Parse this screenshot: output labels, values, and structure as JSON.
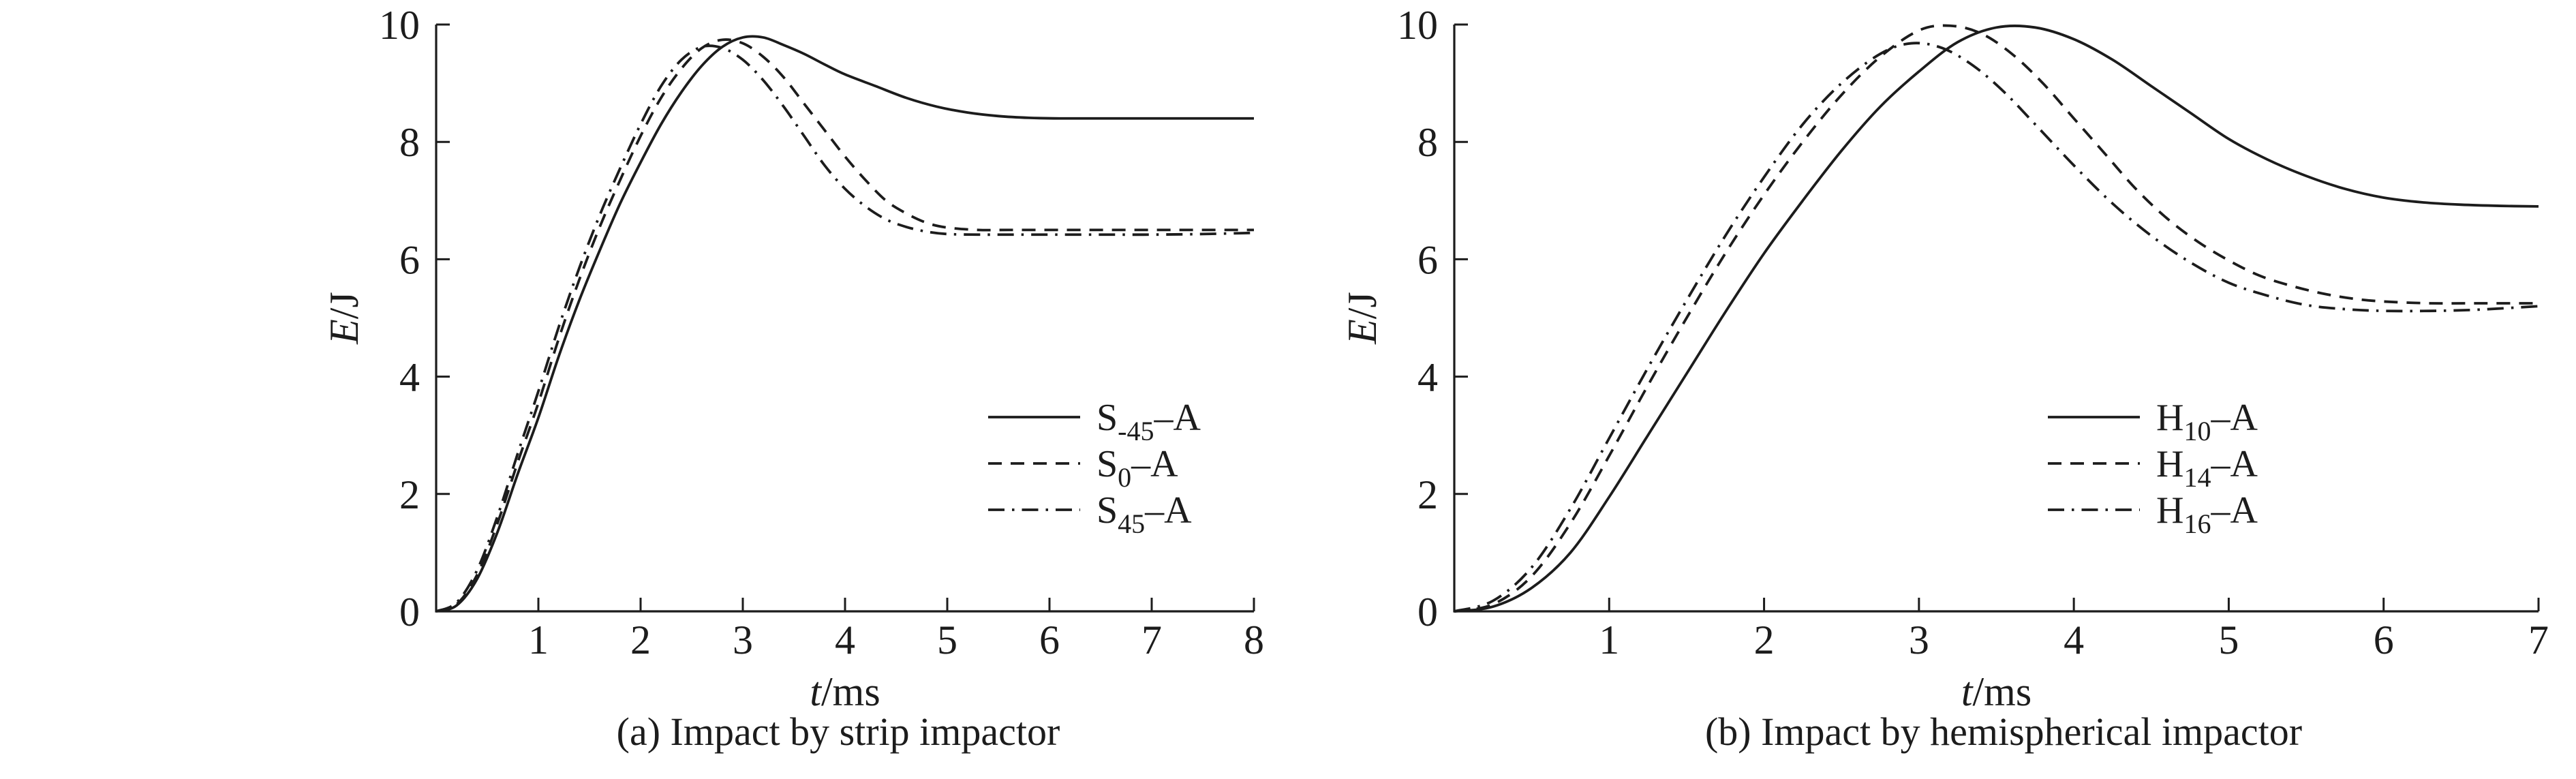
{
  "figure": {
    "background": "#ffffff",
    "ink_color": "#1c1c1c"
  },
  "chart_data": [
    {
      "type": "line",
      "caption": "(a) Impact by strip impactor",
      "xlabel": {
        "var": "t",
        "rest": "/ms"
      },
      "ylabel": {
        "var": "E",
        "rest": "/J"
      },
      "xlim": [
        0,
        8
      ],
      "ylim": [
        0,
        10
      ],
      "xticks": [
        1,
        2,
        3,
        4,
        5,
        6,
        7,
        8
      ],
      "yticks": [
        0,
        2,
        4,
        6,
        8,
        10
      ],
      "grid": false,
      "legend_position": "inside-right-lower",
      "series": [
        {
          "label_base": "S",
          "label_sub": "-45",
          "label_rest": "–A",
          "style": "solid",
          "points": [
            [
              0,
              0
            ],
            [
              0.2,
              0.1
            ],
            [
              0.4,
              0.55
            ],
            [
              0.6,
              1.35
            ],
            [
              0.8,
              2.35
            ],
            [
              1.0,
              3.3
            ],
            [
              1.2,
              4.35
            ],
            [
              1.4,
              5.3
            ],
            [
              1.6,
              6.15
            ],
            [
              1.8,
              6.95
            ],
            [
              2.0,
              7.65
            ],
            [
              2.2,
              8.3
            ],
            [
              2.4,
              8.85
            ],
            [
              2.6,
              9.3
            ],
            [
              2.8,
              9.62
            ],
            [
              3.0,
              9.78
            ],
            [
              3.2,
              9.78
            ],
            [
              3.4,
              9.65
            ],
            [
              3.6,
              9.5
            ],
            [
              3.8,
              9.32
            ],
            [
              4.0,
              9.15
            ],
            [
              4.3,
              8.95
            ],
            [
              4.6,
              8.75
            ],
            [
              4.9,
              8.6
            ],
            [
              5.2,
              8.5
            ],
            [
              5.5,
              8.44
            ],
            [
              5.8,
              8.41
            ],
            [
              6.1,
              8.4
            ],
            [
              6.5,
              8.4
            ],
            [
              7.0,
              8.4
            ],
            [
              7.5,
              8.4
            ],
            [
              8.0,
              8.4
            ]
          ]
        },
        {
          "label_base": "S",
          "label_sub": "0",
          "label_rest": "–A",
          "style": "dashed",
          "points": [
            [
              0,
              0
            ],
            [
              0.2,
              0.12
            ],
            [
              0.4,
              0.62
            ],
            [
              0.6,
              1.5
            ],
            [
              0.8,
              2.55
            ],
            [
              1.0,
              3.55
            ],
            [
              1.2,
              4.65
            ],
            [
              1.4,
              5.65
            ],
            [
              1.6,
              6.55
            ],
            [
              1.8,
              7.35
            ],
            [
              2.0,
              8.1
            ],
            [
              2.2,
              8.75
            ],
            [
              2.4,
              9.25
            ],
            [
              2.6,
              9.6
            ],
            [
              2.8,
              9.74
            ],
            [
              3.0,
              9.68
            ],
            [
              3.2,
              9.45
            ],
            [
              3.4,
              9.1
            ],
            [
              3.6,
              8.65
            ],
            [
              3.8,
              8.2
            ],
            [
              4.0,
              7.75
            ],
            [
              4.2,
              7.35
            ],
            [
              4.4,
              7.0
            ],
            [
              4.6,
              6.78
            ],
            [
              4.8,
              6.62
            ],
            [
              5.0,
              6.54
            ],
            [
              5.3,
              6.5
            ],
            [
              5.6,
              6.5
            ],
            [
              6.0,
              6.5
            ],
            [
              6.5,
              6.5
            ],
            [
              7.0,
              6.5
            ],
            [
              7.5,
              6.5
            ],
            [
              8.0,
              6.5
            ]
          ]
        },
        {
          "label_base": "S",
          "label_sub": "45",
          "label_rest": "–A",
          "style": "dashdot",
          "points": [
            [
              0,
              0
            ],
            [
              0.2,
              0.15
            ],
            [
              0.4,
              0.7
            ],
            [
              0.6,
              1.62
            ],
            [
              0.8,
              2.7
            ],
            [
              1.0,
              3.75
            ],
            [
              1.2,
              4.85
            ],
            [
              1.4,
              5.85
            ],
            [
              1.6,
              6.75
            ],
            [
              1.8,
              7.55
            ],
            [
              2.0,
              8.3
            ],
            [
              2.2,
              8.95
            ],
            [
              2.4,
              9.4
            ],
            [
              2.6,
              9.62
            ],
            [
              2.8,
              9.6
            ],
            [
              3.0,
              9.4
            ],
            [
              3.2,
              9.05
            ],
            [
              3.4,
              8.6
            ],
            [
              3.6,
              8.1
            ],
            [
              3.8,
              7.6
            ],
            [
              4.0,
              7.2
            ],
            [
              4.2,
              6.9
            ],
            [
              4.4,
              6.68
            ],
            [
              4.6,
              6.55
            ],
            [
              4.8,
              6.47
            ],
            [
              5.0,
              6.43
            ],
            [
              5.3,
              6.42
            ],
            [
              5.6,
              6.42
            ],
            [
              6.0,
              6.42
            ],
            [
              6.5,
              6.42
            ],
            [
              7.0,
              6.42
            ],
            [
              7.5,
              6.43
            ],
            [
              8.0,
              6.45
            ]
          ]
        }
      ]
    },
    {
      "type": "line",
      "caption": "(b) Impact by hemispherical impactor",
      "xlabel": {
        "var": "t",
        "rest": "/ms"
      },
      "ylabel": {
        "var": "E",
        "rest": "/J"
      },
      "xlim": [
        0,
        7
      ],
      "ylim": [
        0,
        10
      ],
      "xticks": [
        1,
        2,
        3,
        4,
        5,
        6,
        7
      ],
      "yticks": [
        0,
        2,
        4,
        6,
        8,
        10
      ],
      "grid": false,
      "legend_position": "inside-right-lower",
      "series": [
        {
          "label_base": "H",
          "label_sub": "10",
          "label_rest": "–A",
          "style": "solid",
          "points": [
            [
              0,
              0
            ],
            [
              0.25,
              0.08
            ],
            [
              0.5,
              0.4
            ],
            [
              0.75,
              1.0
            ],
            [
              1.0,
              1.95
            ],
            [
              1.25,
              3.0
            ],
            [
              1.5,
              4.05
            ],
            [
              1.75,
              5.1
            ],
            [
              2.0,
              6.1
            ],
            [
              2.25,
              7.0
            ],
            [
              2.5,
              7.85
            ],
            [
              2.75,
              8.6
            ],
            [
              3.0,
              9.2
            ],
            [
              3.25,
              9.7
            ],
            [
              3.5,
              9.95
            ],
            [
              3.75,
              9.95
            ],
            [
              4.0,
              9.75
            ],
            [
              4.25,
              9.4
            ],
            [
              4.5,
              8.95
            ],
            [
              4.75,
              8.5
            ],
            [
              5.0,
              8.05
            ],
            [
              5.25,
              7.7
            ],
            [
              5.5,
              7.42
            ],
            [
              5.75,
              7.2
            ],
            [
              6.0,
              7.05
            ],
            [
              6.25,
              6.97
            ],
            [
              6.5,
              6.93
            ],
            [
              6.75,
              6.91
            ],
            [
              7.0,
              6.9
            ]
          ]
        },
        {
          "label_base": "H",
          "label_sub": "14",
          "label_rest": "–A",
          "style": "dashed",
          "points": [
            [
              0,
              0
            ],
            [
              0.25,
              0.12
            ],
            [
              0.5,
              0.6
            ],
            [
              0.75,
              1.5
            ],
            [
              1.0,
              2.65
            ],
            [
              1.25,
              3.85
            ],
            [
              1.5,
              5.0
            ],
            [
              1.75,
              6.1
            ],
            [
              2.0,
              7.1
            ],
            [
              2.25,
              8.0
            ],
            [
              2.5,
              8.8
            ],
            [
              2.75,
              9.45
            ],
            [
              3.0,
              9.9
            ],
            [
              3.2,
              9.98
            ],
            [
              3.4,
              9.85
            ],
            [
              3.6,
              9.5
            ],
            [
              3.8,
              9.0
            ],
            [
              4.0,
              8.4
            ],
            [
              4.2,
              7.8
            ],
            [
              4.4,
              7.2
            ],
            [
              4.6,
              6.7
            ],
            [
              4.8,
              6.3
            ],
            [
              5.0,
              5.98
            ],
            [
              5.2,
              5.72
            ],
            [
              5.4,
              5.55
            ],
            [
              5.6,
              5.42
            ],
            [
              5.8,
              5.33
            ],
            [
              6.0,
              5.28
            ],
            [
              6.3,
              5.25
            ],
            [
              6.6,
              5.25
            ],
            [
              7.0,
              5.25
            ]
          ]
        },
        {
          "label_base": "H",
          "label_sub": "16",
          "label_rest": "–A",
          "style": "dashdot",
          "points": [
            [
              0,
              0
            ],
            [
              0.25,
              0.18
            ],
            [
              0.5,
              0.75
            ],
            [
              0.75,
              1.75
            ],
            [
              1.0,
              2.95
            ],
            [
              1.25,
              4.15
            ],
            [
              1.5,
              5.3
            ],
            [
              1.75,
              6.4
            ],
            [
              2.0,
              7.4
            ],
            [
              2.25,
              8.3
            ],
            [
              2.5,
              9.0
            ],
            [
              2.75,
              9.5
            ],
            [
              2.95,
              9.68
            ],
            [
              3.15,
              9.6
            ],
            [
              3.35,
              9.3
            ],
            [
              3.55,
              8.85
            ],
            [
              3.75,
              8.3
            ],
            [
              4.0,
              7.6
            ],
            [
              4.25,
              6.95
            ],
            [
              4.5,
              6.4
            ],
            [
              4.75,
              5.95
            ],
            [
              5.0,
              5.6
            ],
            [
              5.25,
              5.38
            ],
            [
              5.5,
              5.22
            ],
            [
              5.75,
              5.15
            ],
            [
              6.0,
              5.12
            ],
            [
              6.3,
              5.12
            ],
            [
              6.6,
              5.14
            ],
            [
              7.0,
              5.2
            ]
          ]
        }
      ]
    }
  ]
}
